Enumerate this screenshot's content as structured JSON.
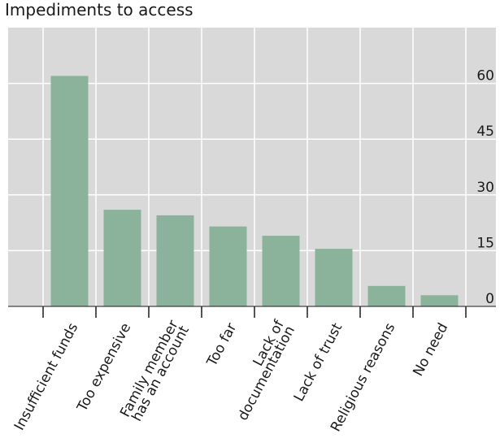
{
  "chart_data": {
    "type": "bar",
    "title": "Impediments to access",
    "xlabel": "",
    "ylabel": "",
    "categories": [
      [
        "Insufficient funds"
      ],
      [
        "Too expensive"
      ],
      [
        "Family member",
        "has an account"
      ],
      [
        "Too far"
      ],
      [
        "Lack of",
        "documentation"
      ],
      [
        "Lack of trust"
      ],
      [
        "Religious reasons"
      ],
      [
        "No need"
      ]
    ],
    "values": [
      62,
      26,
      24.5,
      21.5,
      19,
      15.5,
      5.5,
      3
    ],
    "ylim": [
      0,
      75
    ],
    "yticks": [
      0,
      15,
      30,
      45,
      60
    ],
    "ytick_labels": [
      "0",
      "15",
      "30",
      "45",
      "60"
    ],
    "y_axis_side": "right",
    "grid": true,
    "colors": {
      "bar": "#8bb39b",
      "background": "#d9d9d9",
      "grid": "#ffffff",
      "axis": "#1a1a1a"
    }
  }
}
